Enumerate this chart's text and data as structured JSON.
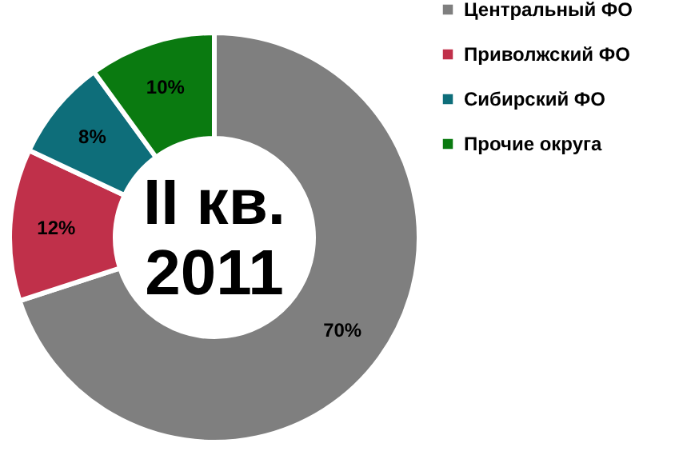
{
  "chart_data": {
    "type": "donut",
    "categories": [
      "Центральный ФО",
      "Приволжский ФО",
      "Сибирский ФО",
      "Прочие округа"
    ],
    "values": [
      70,
      12,
      8,
      10
    ],
    "colors": [
      "#7f7f7f",
      "#c0304a",
      "#0e6e7a",
      "#0a7a10"
    ],
    "value_labels": [
      "70%",
      "12%",
      "8%",
      "10%"
    ],
    "annotations": [
      "II кв.",
      "2011"
    ],
    "legend": "right"
  }
}
